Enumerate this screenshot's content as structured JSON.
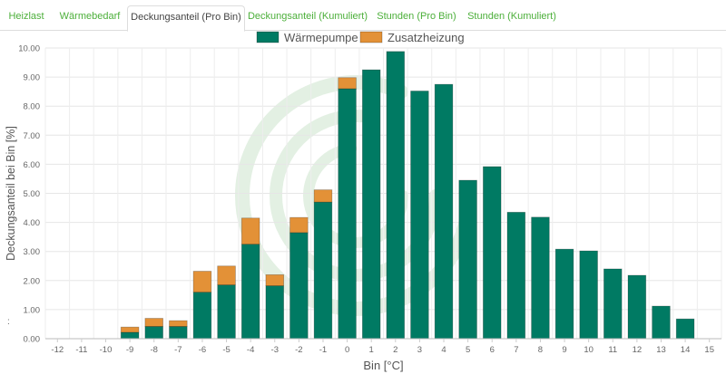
{
  "tabs": [
    {
      "label": "Heizlast",
      "active": false
    },
    {
      "label": "Wärmebedarf",
      "active": false
    },
    {
      "label": "Deckungsanteil (Pro Bin)",
      "active": true
    },
    {
      "label": "Deckungsanteil (Kumuliert)",
      "active": false
    },
    {
      "label": "Stunden (Pro Bin)",
      "active": false
    },
    {
      "label": "Stunden (Kumuliert)",
      "active": false
    }
  ],
  "side_mark": ":",
  "colors": {
    "accent_tab": "#4caf3a",
    "waermepumpe": "#007a63",
    "zusatzheizung": "#e39137",
    "watermark": "#ddeedd"
  },
  "chart_data": {
    "type": "bar",
    "stacked": true,
    "xlabel": "Bin [°C]",
    "ylabel": "Deckungsanteil bei Bin [%]",
    "ylim": [
      0,
      10
    ],
    "yticks": [
      "0.00",
      "1.00",
      "2.00",
      "3.00",
      "4.00",
      "5.00",
      "6.00",
      "7.00",
      "8.00",
      "9.00",
      "10.00"
    ],
    "categories": [
      "-12",
      "-11",
      "-10",
      "-9",
      "-8",
      "-7",
      "-6",
      "-5",
      "-4",
      "-3",
      "-2",
      "-1",
      "0",
      "1",
      "2",
      "3",
      "4",
      "5",
      "6",
      "7",
      "8",
      "9",
      "10",
      "11",
      "12",
      "13",
      "14",
      "15"
    ],
    "legend_position": "top",
    "grid": true,
    "series": [
      {
        "name": "Wärmepumpe",
        "color": "#007a63",
        "values": [
          0,
          0,
          0,
          0.22,
          0.42,
          0.42,
          1.6,
          1.85,
          3.25,
          1.82,
          3.65,
          4.7,
          8.6,
          9.25,
          9.88,
          8.52,
          8.75,
          5.45,
          5.92,
          4.35,
          4.18,
          3.08,
          3.02,
          2.4,
          2.18,
          1.12,
          0.68,
          0
        ]
      },
      {
        "name": "Zusatzheizung",
        "color": "#e39137",
        "values": [
          0,
          0,
          0,
          0.18,
          0.28,
          0.2,
          0.72,
          0.65,
          0.9,
          0.38,
          0.52,
          0.42,
          0.38,
          0,
          0,
          0,
          0,
          0,
          0,
          0,
          0,
          0,
          0,
          0,
          0,
          0,
          0,
          0
        ]
      }
    ]
  }
}
